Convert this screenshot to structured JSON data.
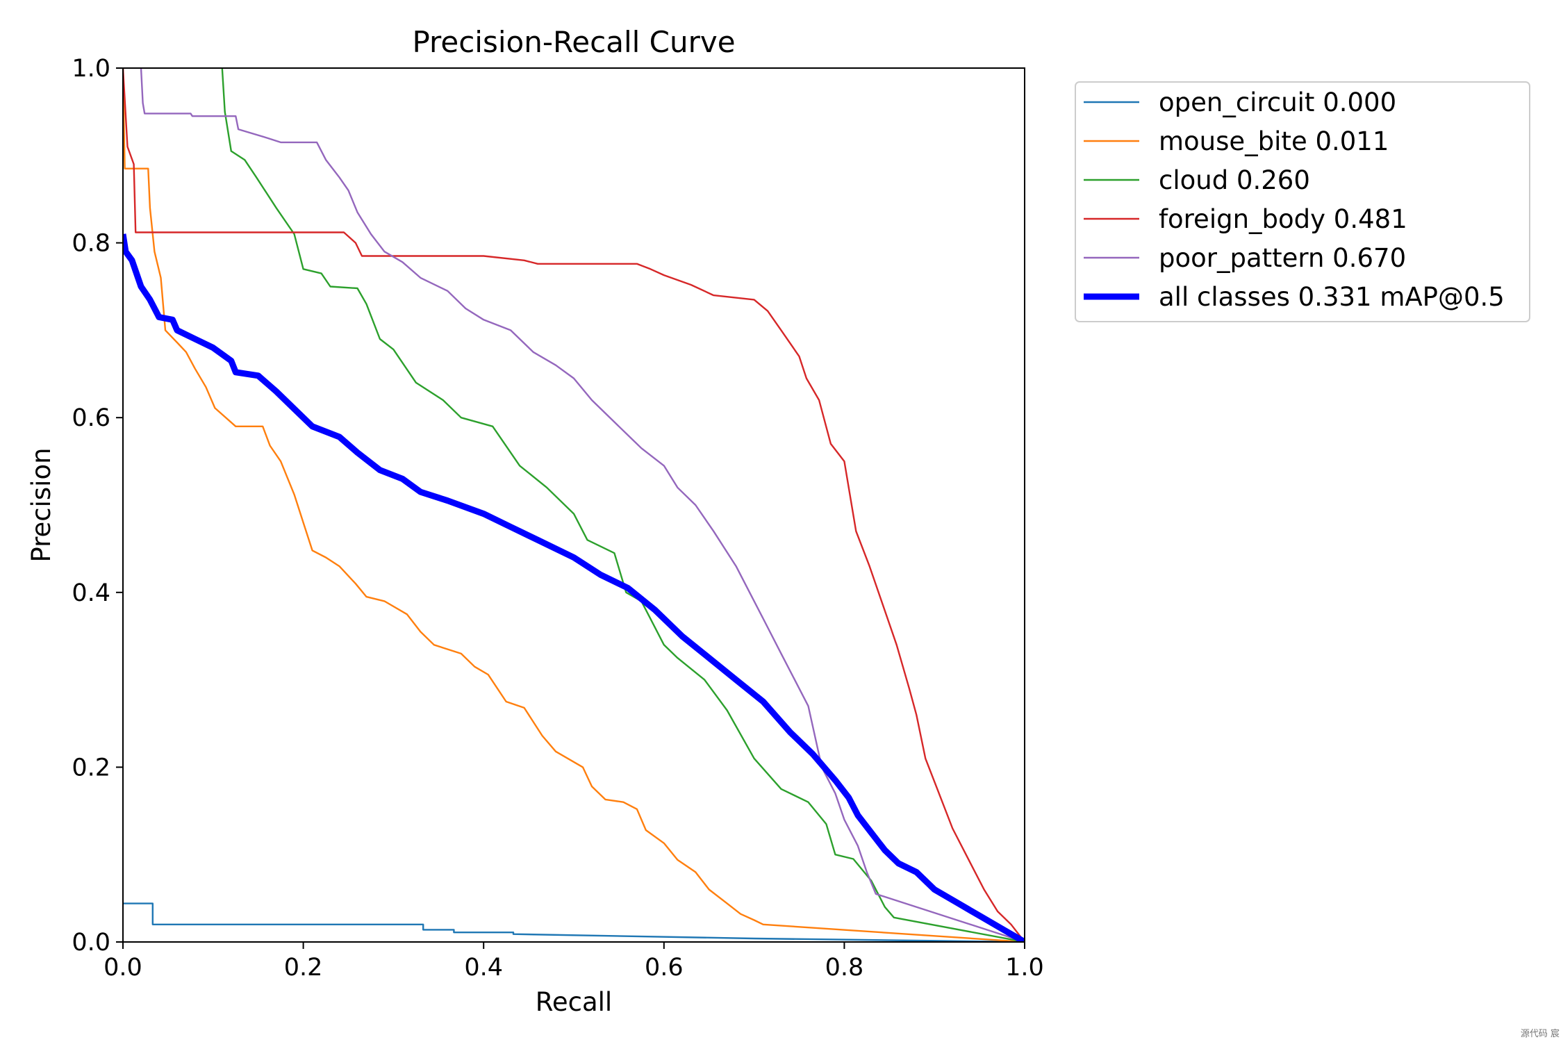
{
  "chart_data": {
    "type": "line",
    "title": "Precision-Recall Curve",
    "xlabel": "Recall",
    "ylabel": "Precision",
    "xlim": [
      0.0,
      1.0
    ],
    "ylim": [
      0.0,
      1.0
    ],
    "grid": false,
    "legend_position": "outside-top-right",
    "x_ticks": [
      "0.0",
      "0.2",
      "0.4",
      "0.6",
      "0.8",
      "1.0"
    ],
    "y_ticks": [
      "0.0",
      "0.2",
      "0.4",
      "0.6",
      "0.8",
      "1.0"
    ],
    "series": [
      {
        "name": "open_circuit",
        "label": "open_circuit 0.000",
        "ap": 0.0,
        "color": "#1f77b4",
        "bold": false,
        "points": [
          [
            0.0,
            0.044
          ],
          [
            0.033,
            0.044
          ],
          [
            0.033,
            0.02
          ],
          [
            0.333,
            0.02
          ],
          [
            0.333,
            0.014
          ],
          [
            0.367,
            0.014
          ],
          [
            0.367,
            0.011
          ],
          [
            0.433,
            0.011
          ],
          [
            0.433,
            0.009
          ],
          [
            0.7,
            0.004
          ],
          [
            1.0,
            0.0
          ]
        ]
      },
      {
        "name": "mouse_bite",
        "label": "mouse_bite 0.011",
        "ap": 0.011,
        "color": "#ff7f0e",
        "bold": false,
        "points": [
          [
            0.0,
            1.0
          ],
          [
            0.002,
            0.885
          ],
          [
            0.028,
            0.885
          ],
          [
            0.03,
            0.84
          ],
          [
            0.035,
            0.79
          ],
          [
            0.042,
            0.76
          ],
          [
            0.047,
            0.7
          ],
          [
            0.06,
            0.686
          ],
          [
            0.07,
            0.675
          ],
          [
            0.08,
            0.656
          ],
          [
            0.092,
            0.635
          ],
          [
            0.102,
            0.611
          ],
          [
            0.125,
            0.59
          ],
          [
            0.155,
            0.59
          ],
          [
            0.163,
            0.568
          ],
          [
            0.175,
            0.55
          ],
          [
            0.19,
            0.512
          ],
          [
            0.2,
            0.48
          ],
          [
            0.21,
            0.448
          ],
          [
            0.225,
            0.44
          ],
          [
            0.24,
            0.43
          ],
          [
            0.258,
            0.41
          ],
          [
            0.27,
            0.395
          ],
          [
            0.29,
            0.39
          ],
          [
            0.315,
            0.375
          ],
          [
            0.33,
            0.355
          ],
          [
            0.345,
            0.34
          ],
          [
            0.375,
            0.33
          ],
          [
            0.39,
            0.315
          ],
          [
            0.405,
            0.306
          ],
          [
            0.425,
            0.275
          ],
          [
            0.445,
            0.268
          ],
          [
            0.465,
            0.236
          ],
          [
            0.48,
            0.218
          ],
          [
            0.51,
            0.2
          ],
          [
            0.52,
            0.178
          ],
          [
            0.535,
            0.163
          ],
          [
            0.555,
            0.16
          ],
          [
            0.57,
            0.152
          ],
          [
            0.58,
            0.128
          ],
          [
            0.6,
            0.113
          ],
          [
            0.615,
            0.094
          ],
          [
            0.635,
            0.08
          ],
          [
            0.65,
            0.06
          ],
          [
            0.67,
            0.044
          ],
          [
            0.685,
            0.032
          ],
          [
            0.7,
            0.025
          ],
          [
            0.71,
            0.02
          ],
          [
            1.0,
            0.0
          ]
        ]
      },
      {
        "name": "cloud",
        "label": "cloud 0.260",
        "ap": 0.26,
        "color": "#2ca02c",
        "bold": false,
        "points": [
          [
            0.11,
            1.0
          ],
          [
            0.113,
            0.95
          ],
          [
            0.12,
            0.905
          ],
          [
            0.135,
            0.895
          ],
          [
            0.148,
            0.875
          ],
          [
            0.17,
            0.84
          ],
          [
            0.19,
            0.81
          ],
          [
            0.2,
            0.77
          ],
          [
            0.22,
            0.765
          ],
          [
            0.23,
            0.75
          ],
          [
            0.26,
            0.748
          ],
          [
            0.27,
            0.73
          ],
          [
            0.285,
            0.69
          ],
          [
            0.3,
            0.678
          ],
          [
            0.325,
            0.64
          ],
          [
            0.355,
            0.62
          ],
          [
            0.375,
            0.6
          ],
          [
            0.41,
            0.59
          ],
          [
            0.44,
            0.545
          ],
          [
            0.47,
            0.52
          ],
          [
            0.5,
            0.49
          ],
          [
            0.515,
            0.46
          ],
          [
            0.545,
            0.445
          ],
          [
            0.558,
            0.4
          ],
          [
            0.575,
            0.39
          ],
          [
            0.6,
            0.34
          ],
          [
            0.615,
            0.325
          ],
          [
            0.645,
            0.3
          ],
          [
            0.67,
            0.265
          ],
          [
            0.7,
            0.21
          ],
          [
            0.73,
            0.175
          ],
          [
            0.76,
            0.16
          ],
          [
            0.78,
            0.135
          ],
          [
            0.79,
            0.1
          ],
          [
            0.81,
            0.095
          ],
          [
            0.83,
            0.07
          ],
          [
            0.845,
            0.04
          ],
          [
            0.855,
            0.028
          ],
          [
            1.0,
            0.0
          ]
        ]
      },
      {
        "name": "foreign_body",
        "label": "foreign_body 0.481",
        "ap": 0.481,
        "color": "#d62728",
        "bold": false,
        "points": [
          [
            0.0,
            1.0
          ],
          [
            0.005,
            0.91
          ],
          [
            0.012,
            0.89
          ],
          [
            0.014,
            0.812
          ],
          [
            0.245,
            0.812
          ],
          [
            0.258,
            0.8
          ],
          [
            0.265,
            0.785
          ],
          [
            0.4,
            0.785
          ],
          [
            0.445,
            0.78
          ],
          [
            0.46,
            0.776
          ],
          [
            0.57,
            0.776
          ],
          [
            0.585,
            0.77
          ],
          [
            0.6,
            0.763
          ],
          [
            0.63,
            0.752
          ],
          [
            0.655,
            0.74
          ],
          [
            0.7,
            0.735
          ],
          [
            0.715,
            0.722
          ],
          [
            0.73,
            0.7
          ],
          [
            0.75,
            0.67
          ],
          [
            0.758,
            0.645
          ],
          [
            0.772,
            0.62
          ],
          [
            0.785,
            0.57
          ],
          [
            0.8,
            0.55
          ],
          [
            0.813,
            0.47
          ],
          [
            0.828,
            0.43
          ],
          [
            0.848,
            0.37
          ],
          [
            0.858,
            0.34
          ],
          [
            0.872,
            0.29
          ],
          [
            0.88,
            0.26
          ],
          [
            0.89,
            0.21
          ],
          [
            0.905,
            0.17
          ],
          [
            0.92,
            0.13
          ],
          [
            0.94,
            0.09
          ],
          [
            0.955,
            0.06
          ],
          [
            0.97,
            0.035
          ],
          [
            0.985,
            0.02
          ],
          [
            1.0,
            0.0
          ]
        ]
      },
      {
        "name": "poor_pattern",
        "label": "poor_pattern 0.670",
        "ap": 0.67,
        "color": "#9467bd",
        "bold": false,
        "points": [
          [
            0.02,
            1.0
          ],
          [
            0.022,
            0.96
          ],
          [
            0.024,
            0.948
          ],
          [
            0.075,
            0.948
          ],
          [
            0.077,
            0.945
          ],
          [
            0.125,
            0.945
          ],
          [
            0.128,
            0.93
          ],
          [
            0.16,
            0.92
          ],
          [
            0.175,
            0.915
          ],
          [
            0.215,
            0.915
          ],
          [
            0.225,
            0.895
          ],
          [
            0.24,
            0.875
          ],
          [
            0.25,
            0.86
          ],
          [
            0.26,
            0.835
          ],
          [
            0.275,
            0.81
          ],
          [
            0.29,
            0.79
          ],
          [
            0.31,
            0.778
          ],
          [
            0.33,
            0.76
          ],
          [
            0.36,
            0.745
          ],
          [
            0.38,
            0.725
          ],
          [
            0.4,
            0.712
          ],
          [
            0.43,
            0.7
          ],
          [
            0.455,
            0.675
          ],
          [
            0.48,
            0.66
          ],
          [
            0.5,
            0.645
          ],
          [
            0.52,
            0.62
          ],
          [
            0.55,
            0.59
          ],
          [
            0.575,
            0.565
          ],
          [
            0.6,
            0.545
          ],
          [
            0.615,
            0.52
          ],
          [
            0.635,
            0.5
          ],
          [
            0.655,
            0.47
          ],
          [
            0.68,
            0.43
          ],
          [
            0.695,
            0.4
          ],
          [
            0.71,
            0.37
          ],
          [
            0.73,
            0.33
          ],
          [
            0.745,
            0.3
          ],
          [
            0.76,
            0.27
          ],
          [
            0.775,
            0.2
          ],
          [
            0.79,
            0.17
          ],
          [
            0.8,
            0.14
          ],
          [
            0.815,
            0.11
          ],
          [
            0.825,
            0.08
          ],
          [
            0.835,
            0.055
          ],
          [
            1.0,
            0.0
          ]
        ]
      },
      {
        "name": "all_classes",
        "label": "all classes 0.331 mAP@0.5",
        "ap": 0.331,
        "color": "#0000ff",
        "bold": true,
        "points": [
          [
            0.0,
            0.81
          ],
          [
            0.003,
            0.79
          ],
          [
            0.01,
            0.78
          ],
          [
            0.02,
            0.75
          ],
          [
            0.03,
            0.735
          ],
          [
            0.04,
            0.715
          ],
          [
            0.055,
            0.712
          ],
          [
            0.06,
            0.7
          ],
          [
            0.08,
            0.69
          ],
          [
            0.1,
            0.68
          ],
          [
            0.12,
            0.665
          ],
          [
            0.125,
            0.652
          ],
          [
            0.15,
            0.648
          ],
          [
            0.17,
            0.63
          ],
          [
            0.19,
            0.61
          ],
          [
            0.21,
            0.59
          ],
          [
            0.24,
            0.578
          ],
          [
            0.26,
            0.56
          ],
          [
            0.285,
            0.54
          ],
          [
            0.31,
            0.53
          ],
          [
            0.33,
            0.515
          ],
          [
            0.36,
            0.505
          ],
          [
            0.4,
            0.49
          ],
          [
            0.43,
            0.475
          ],
          [
            0.46,
            0.46
          ],
          [
            0.5,
            0.44
          ],
          [
            0.53,
            0.42
          ],
          [
            0.56,
            0.405
          ],
          [
            0.59,
            0.38
          ],
          [
            0.62,
            0.35
          ],
          [
            0.65,
            0.325
          ],
          [
            0.68,
            0.3
          ],
          [
            0.71,
            0.275
          ],
          [
            0.74,
            0.24
          ],
          [
            0.765,
            0.215
          ],
          [
            0.79,
            0.185
          ],
          [
            0.805,
            0.165
          ],
          [
            0.815,
            0.145
          ],
          [
            0.83,
            0.125
          ],
          [
            0.845,
            0.105
          ],
          [
            0.86,
            0.09
          ],
          [
            0.88,
            0.08
          ],
          [
            0.9,
            0.06
          ],
          [
            0.925,
            0.045
          ],
          [
            0.95,
            0.03
          ],
          [
            0.975,
            0.015
          ],
          [
            1.0,
            0.0
          ]
        ]
      }
    ]
  },
  "watermark": "源代码  宸"
}
